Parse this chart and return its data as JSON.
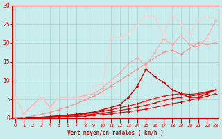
{
  "background_color": "#c8ecec",
  "grid_color": "#b0d8d8",
  "xlabel": "Vent moyen/en rafales ( km/h )",
  "xlim": [
    -0.3,
    23.3
  ],
  "ylim": [
    0,
    30
  ],
  "yticks": [
    0,
    5,
    10,
    15,
    20,
    25,
    30
  ],
  "xticks": [
    0,
    1,
    2,
    3,
    4,
    5,
    6,
    7,
    8,
    9,
    10,
    11,
    12,
    13,
    14,
    15,
    16,
    17,
    18,
    19,
    20,
    21,
    22,
    23
  ],
  "series": [
    {
      "x": [
        0,
        1,
        2,
        3,
        4,
        5,
        6,
        7,
        8,
        9,
        10,
        11,
        12,
        13,
        14,
        15,
        16,
        17,
        18,
        19,
        20,
        21,
        22,
        23
      ],
      "y": [
        0.0,
        0.0,
        0.0,
        0.1,
        0.1,
        0.2,
        0.3,
        0.4,
        0.5,
        0.7,
        0.9,
        1.1,
        1.4,
        1.7,
        2.0,
        2.4,
        2.8,
        3.3,
        3.8,
        4.2,
        4.7,
        5.2,
        5.8,
        6.5
      ],
      "color": "#dd0000",
      "lw": 0.8
    },
    {
      "x": [
        0,
        1,
        2,
        3,
        4,
        5,
        6,
        7,
        8,
        9,
        10,
        11,
        12,
        13,
        14,
        15,
        16,
        17,
        18,
        19,
        20,
        21,
        22,
        23
      ],
      "y": [
        0.0,
        0.0,
        0.0,
        0.1,
        0.2,
        0.3,
        0.4,
        0.6,
        0.8,
        1.0,
        1.3,
        1.6,
        2.0,
        2.4,
        2.9,
        3.4,
        4.0,
        4.6,
        5.2,
        5.5,
        5.8,
        6.2,
        6.8,
        7.5
      ],
      "color": "#dd0000",
      "lw": 0.8
    },
    {
      "x": [
        0,
        1,
        2,
        3,
        4,
        5,
        6,
        7,
        8,
        9,
        10,
        11,
        12,
        13,
        14,
        15,
        16,
        17,
        18,
        19,
        20,
        21,
        22,
        23
      ],
      "y": [
        0.0,
        0.0,
        0.1,
        0.2,
        0.3,
        0.5,
        0.6,
        0.8,
        1.1,
        1.4,
        1.8,
        2.2,
        2.7,
        3.2,
        3.8,
        4.5,
        5.2,
        5.8,
        6.2,
        6.5,
        6.3,
        6.5,
        7.0,
        7.5
      ],
      "color": "#dd0000",
      "lw": 0.8
    },
    {
      "x": [
        0,
        1,
        2,
        3,
        4,
        5,
        6,
        7,
        8,
        9,
        10,
        11,
        12,
        13,
        14,
        15,
        16,
        17,
        18,
        19,
        20,
        21,
        22,
        23
      ],
      "y": [
        0.0,
        0.0,
        0.1,
        0.2,
        0.4,
        0.6,
        0.8,
        1.0,
        1.3,
        1.6,
        2.2,
        2.8,
        3.5,
        5.5,
        8.5,
        13.0,
        11.0,
        9.5,
        7.5,
        6.5,
        5.5,
        5.5,
        6.5,
        7.5
      ],
      "color": "#cc0000",
      "lw": 1.0
    },
    {
      "x": [
        0,
        1,
        2,
        3,
        4,
        5,
        6,
        7,
        8,
        9,
        10,
        11,
        12,
        13,
        14,
        15,
        16,
        17,
        18,
        19,
        20,
        21,
        22,
        23
      ],
      "y": [
        0.0,
        0.2,
        0.5,
        1.0,
        1.5,
        2.2,
        3.0,
        3.8,
        4.8,
        5.8,
        7.0,
        8.5,
        10.0,
        11.5,
        13.0,
        14.5,
        16.0,
        17.5,
        18.0,
        17.0,
        18.5,
        20.0,
        19.5,
        20.0
      ],
      "color": "#ee9999",
      "lw": 0.9
    },
    {
      "x": [
        0,
        1,
        2,
        3,
        4,
        5,
        6,
        7,
        8,
        9,
        10,
        11,
        12,
        13,
        14,
        15,
        16,
        17,
        18,
        19,
        20,
        21,
        22,
        23
      ],
      "y": [
        5.5,
        1.2,
        3.5,
        5.5,
        3.0,
        5.5,
        5.5,
        5.5,
        6.0,
        6.5,
        8.0,
        10.0,
        12.0,
        14.5,
        16.0,
        14.0,
        17.5,
        21.0,
        19.5,
        22.0,
        19.5,
        19.0,
        21.5,
        26.0
      ],
      "color": "#ffaaaa",
      "lw": 0.85
    },
    {
      "x": [
        0,
        1,
        2,
        3,
        4,
        5,
        6,
        7,
        8,
        9,
        10,
        11,
        12,
        13,
        14,
        15,
        16,
        17,
        18,
        19,
        20,
        21,
        22,
        23
      ],
      "y": [
        5.5,
        1.0,
        3.0,
        5.5,
        2.5,
        5.5,
        5.5,
        5.5,
        5.5,
        8.5,
        9.0,
        21.5,
        21.5,
        22.5,
        25.0,
        27.5,
        27.0,
        22.0,
        27.5,
        25.0,
        22.0,
        26.5,
        27.0,
        26.5
      ],
      "color": "#ffcccc",
      "lw": 0.8
    }
  ]
}
